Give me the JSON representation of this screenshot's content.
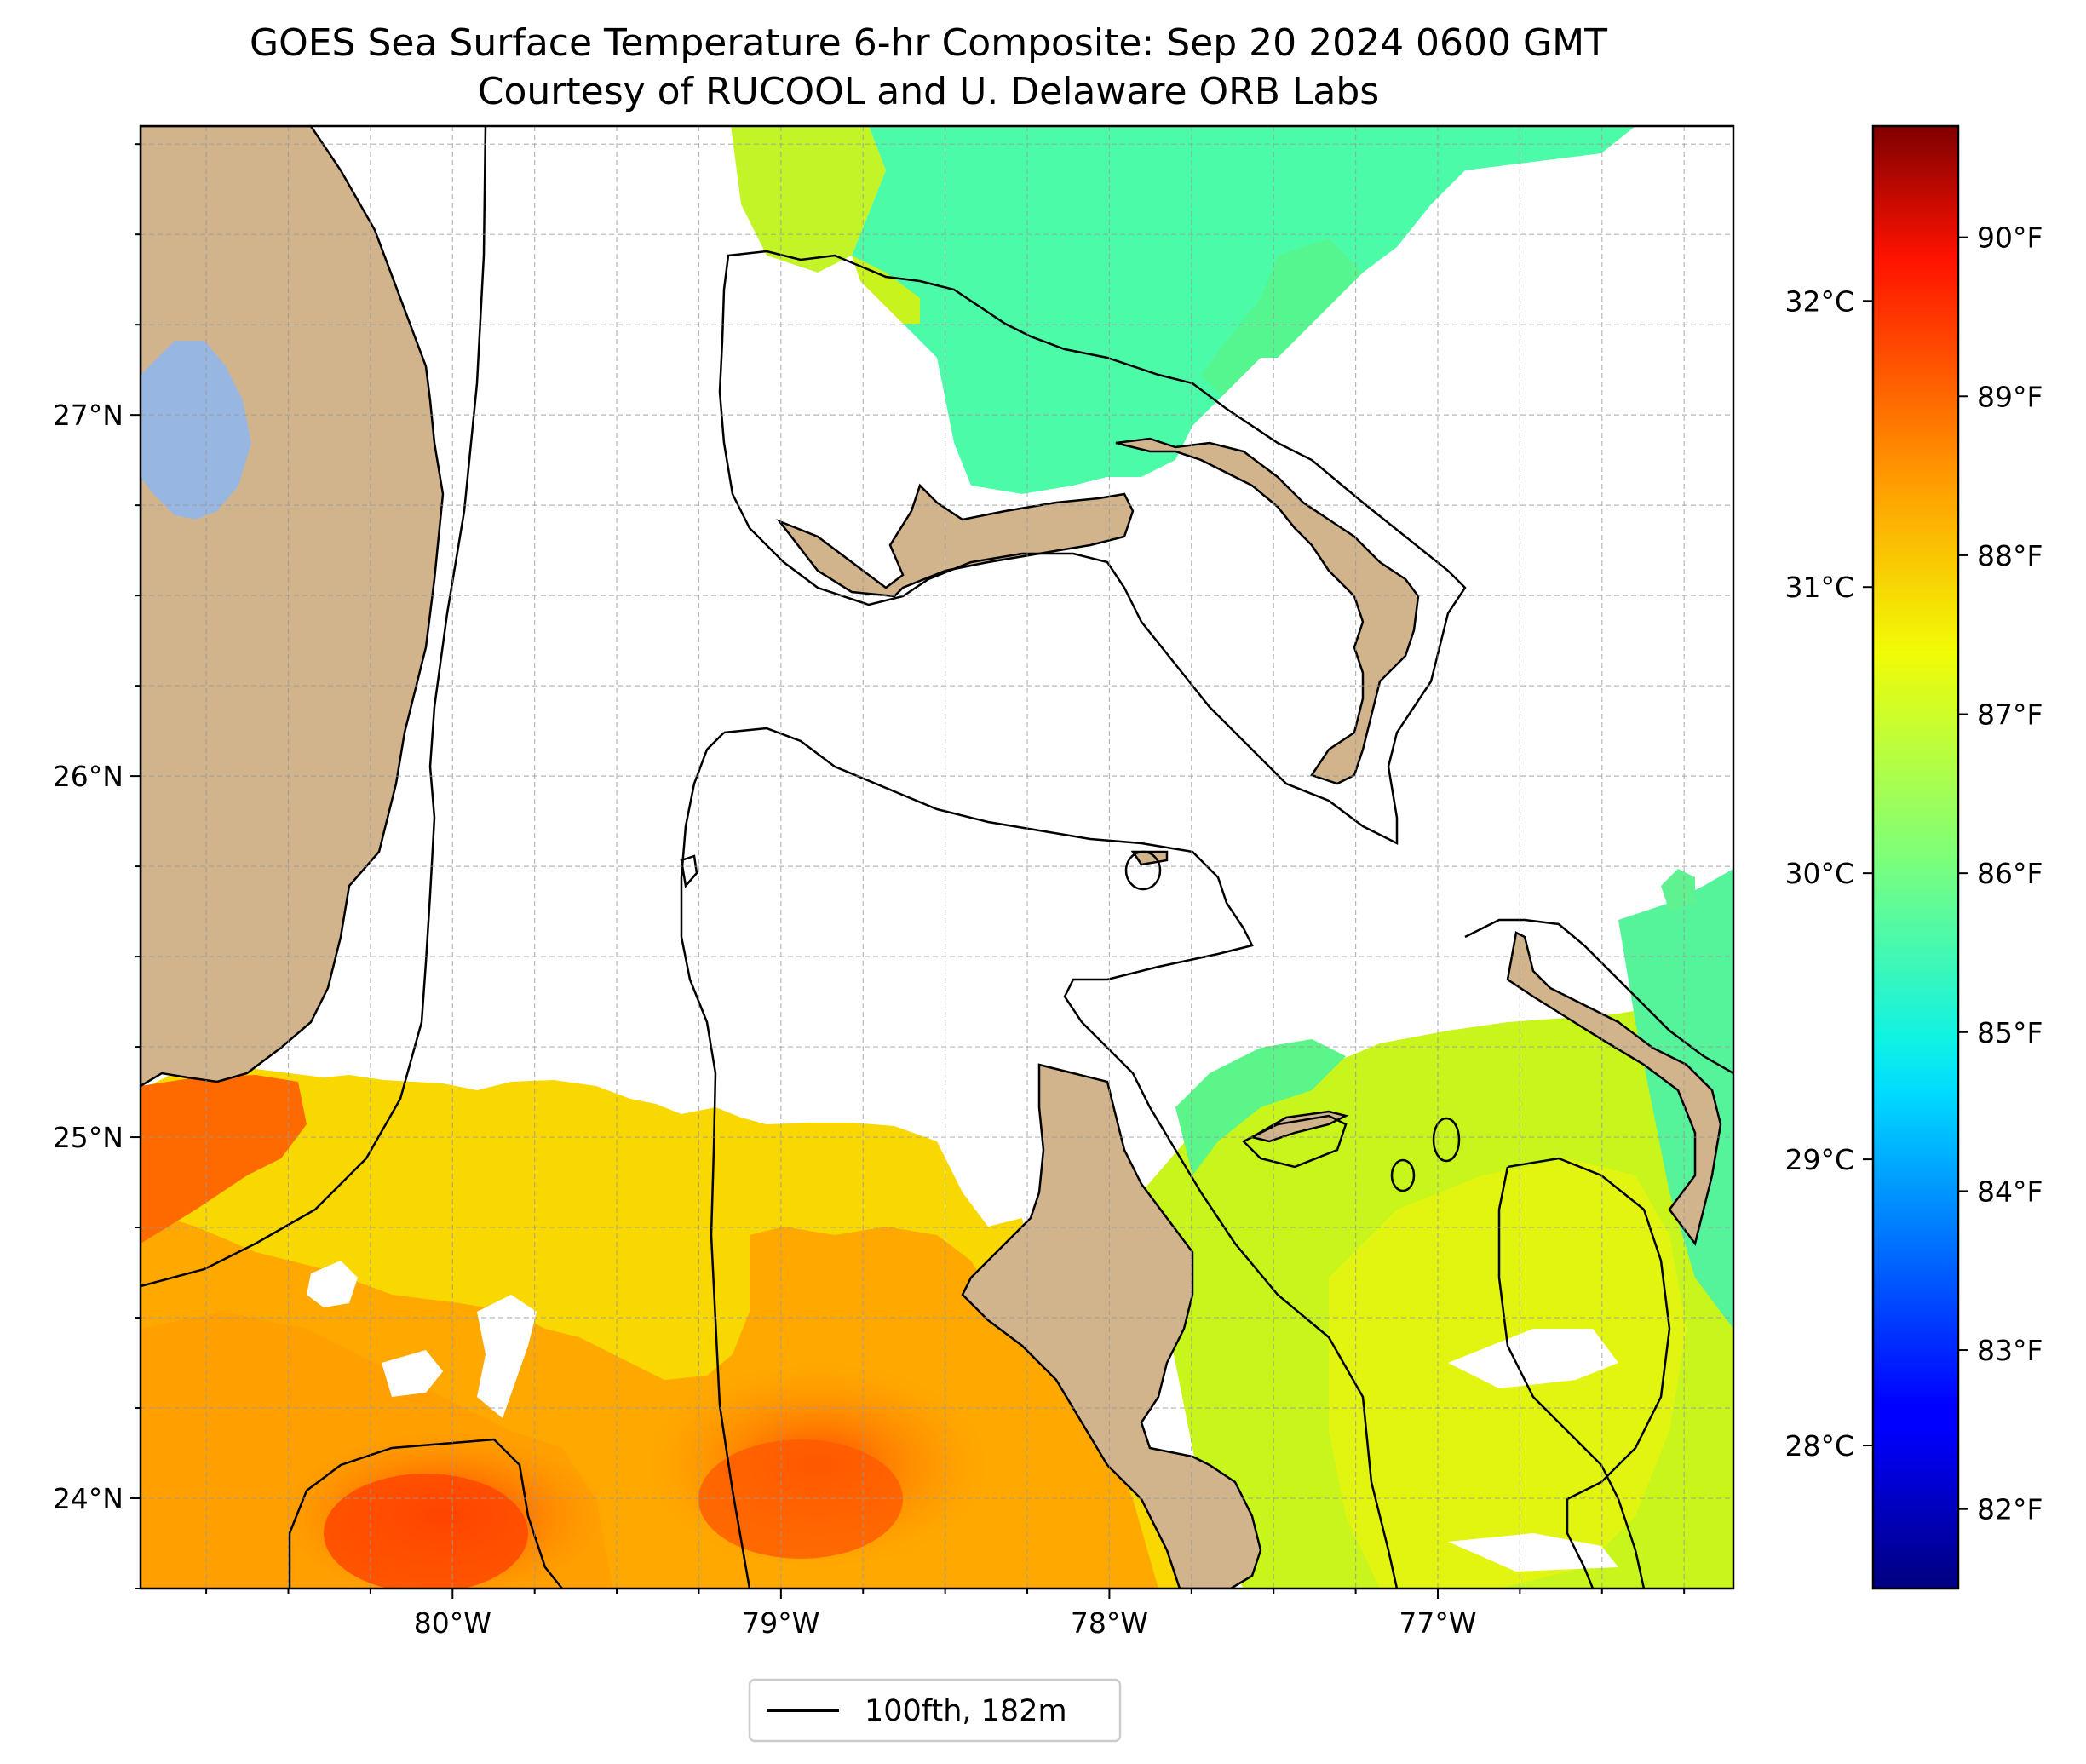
{
  "title": {
    "line1": "GOES Sea Surface Temperature 6-hr Composite: Sep 20 2024 0600 GMT",
    "line2": "Courtesy of RUCOOL and U. Delaware ORB Labs"
  },
  "map": {
    "lon_range": [
      -80.95,
      -76.1
    ],
    "lat_range": [
      23.75,
      27.8
    ],
    "lon_ticks": [
      {
        "value": -80,
        "label": "80°W"
      },
      {
        "value": -79,
        "label": "79°W"
      },
      {
        "value": -78,
        "label": "78°W"
      },
      {
        "value": -77,
        "label": "77°W"
      }
    ],
    "lat_ticks": [
      {
        "value": 24,
        "label": "24°N"
      },
      {
        "value": 25,
        "label": "25°N"
      },
      {
        "value": 26,
        "label": "26°N"
      },
      {
        "value": 27,
        "label": "27°N"
      }
    ],
    "gridlines": true,
    "land_color": "#d2b48c",
    "lake_color": "#97b6e1",
    "places": [
      "Florida",
      "Lake Okeechobee",
      "Grand Bahama",
      "Great Abaco",
      "Andros Island",
      "Bimini",
      "Berry Islands",
      "Eleuthera",
      "New Providence"
    ]
  },
  "colorbar": {
    "colormap": "jet",
    "fahrenheit_ticks": [
      {
        "value": 90,
        "label": "90°F"
      },
      {
        "value": 89,
        "label": "89°F"
      },
      {
        "value": 88,
        "label": "88°F"
      },
      {
        "value": 87,
        "label": "87°F"
      },
      {
        "value": 86,
        "label": "86°F"
      },
      {
        "value": 85,
        "label": "85°F"
      },
      {
        "value": 84,
        "label": "84°F"
      },
      {
        "value": 83,
        "label": "83°F"
      },
      {
        "value": 82,
        "label": "82°F"
      }
    ],
    "celsius_ticks": [
      {
        "value": 32,
        "label": "32°C"
      },
      {
        "value": 31,
        "label": "31°C"
      },
      {
        "value": 30,
        "label": "30°C"
      },
      {
        "value": 29,
        "label": "29°C"
      },
      {
        "value": 28,
        "label": "28°C"
      }
    ],
    "range_f": [
      81.5,
      90.7
    ]
  },
  "legend": {
    "label": "100fth, 182m",
    "line_color": "#000000"
  },
  "sst_regions": {
    "south_max_f": 89.7,
    "south_typical_f": 88.3,
    "east_typical_f": 86.3,
    "north_typical_f": 85.9
  }
}
